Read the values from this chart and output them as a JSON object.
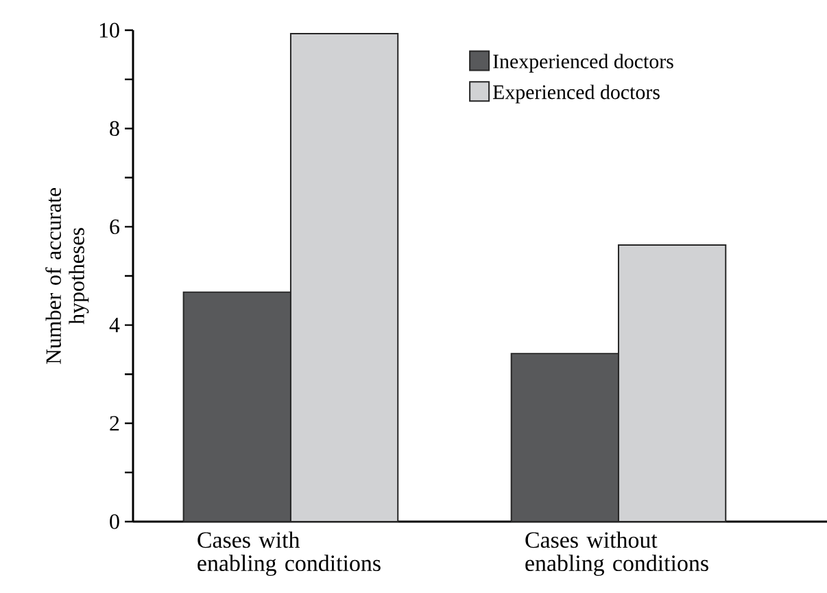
{
  "chart_data": {
    "type": "bar",
    "ylabel": "Number of accurate hypotheses",
    "categories": [
      "Cases with enabling conditions",
      "Cases without enabling conditions"
    ],
    "series": [
      {
        "name": "Inexperienced doctors",
        "color": "#58595b",
        "values": [
          4.67,
          3.42
        ]
      },
      {
        "name": "Experienced doctors",
        "color": "#d1d2d4",
        "values": [
          9.93,
          5.63
        ]
      }
    ],
    "ylim": [
      0,
      10
    ],
    "yticks": [
      0,
      {
        "value": 1,
        "label": null
      },
      2,
      {
        "value": 3,
        "label": null
      },
      4,
      {
        "value": 5,
        "label": null
      },
      6,
      {
        "value": 7,
        "label": null
      },
      8,
      {
        "value": 9,
        "label": null
      },
      10
    ],
    "legend": "top right",
    "grid": false
  }
}
